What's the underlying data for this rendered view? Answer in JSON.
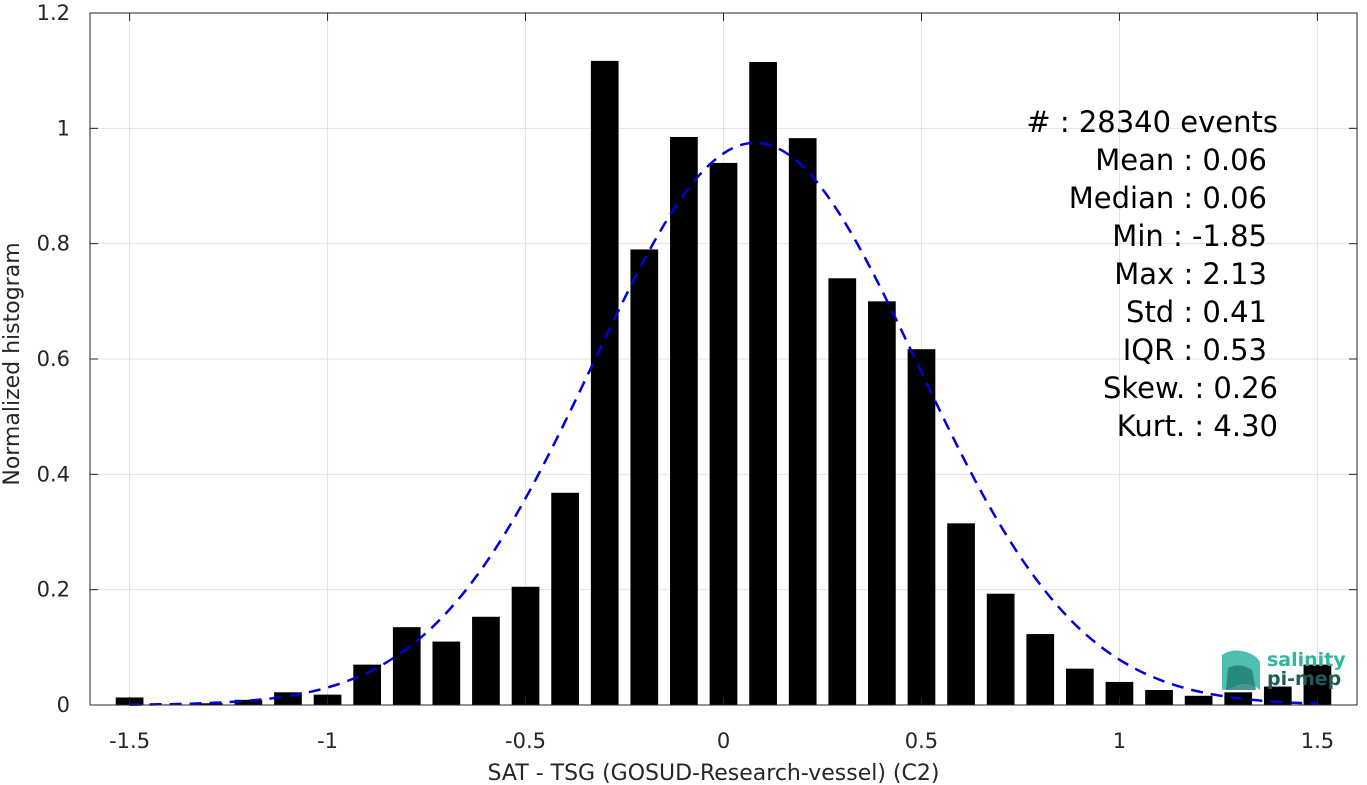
{
  "chart_data": {
    "type": "bar",
    "xlabel": "SAT - TSG (GOSUD-Research-vessel) (C2)",
    "ylabel": "Normalized histogram",
    "xlim": [
      -1.6,
      1.6
    ],
    "ylim": [
      0,
      1.2
    ],
    "xticks": [
      -1.5,
      -1,
      -0.5,
      0,
      0.5,
      1,
      1.5
    ],
    "xtick_labels": [
      "-1.5",
      "-1",
      "-0.5",
      "0",
      "0.5",
      "1",
      "1.5"
    ],
    "yticks": [
      0,
      0.2,
      0.4,
      0.6,
      0.8,
      1,
      1.2
    ],
    "ytick_labels": [
      "0",
      "0.2",
      "0.4",
      "0.6",
      "0.8",
      "1",
      "1.2"
    ],
    "grid": true,
    "bar_width": 0.07,
    "x": [
      -1.5,
      -1.4,
      -1.3,
      -1.2,
      -1.1,
      -1.0,
      -0.9,
      -0.8,
      -0.7,
      -0.6,
      -0.5,
      -0.4,
      -0.3,
      -0.2,
      -0.1,
      0.0,
      0.1,
      0.2,
      0.3,
      0.4,
      0.5,
      0.6,
      0.7,
      0.8,
      0.9,
      1.0,
      1.1,
      1.2,
      1.3,
      1.4,
      1.5
    ],
    "values": [
      0.013,
      0.001,
      0.003,
      0.009,
      0.022,
      0.018,
      0.07,
      0.135,
      0.11,
      0.153,
      0.205,
      0.368,
      1.117,
      0.79,
      0.985,
      0.94,
      1.115,
      0.983,
      0.74,
      0.7,
      0.617,
      0.315,
      0.193,
      0.123,
      0.063,
      0.04,
      0.026,
      0.016,
      0.022,
      0.032,
      0.07
    ],
    "fit_curve": {
      "type": "gaussian",
      "mean": 0.08,
      "std": 0.41,
      "peak": 0.975,
      "color": "#0000dd"
    },
    "bar_color": "#000000",
    "stats": [
      {
        "label": "#  : 28340 events"
      },
      {
        "label": "Mean : 0.06"
      },
      {
        "label": "Median : 0.06"
      },
      {
        "label": "Min : -1.85"
      },
      {
        "label": "Max : 2.13"
      },
      {
        "label": "Std : 0.41"
      },
      {
        "label": "IQR : 0.53"
      },
      {
        "label": "Skew. : 0.26"
      },
      {
        "label": "Kurt. : 4.30"
      }
    ]
  },
  "logo": {
    "line1": "salinity",
    "line2": "pi-mep",
    "color1": "#2fb5a0",
    "color2": "#1f5c5a"
  }
}
